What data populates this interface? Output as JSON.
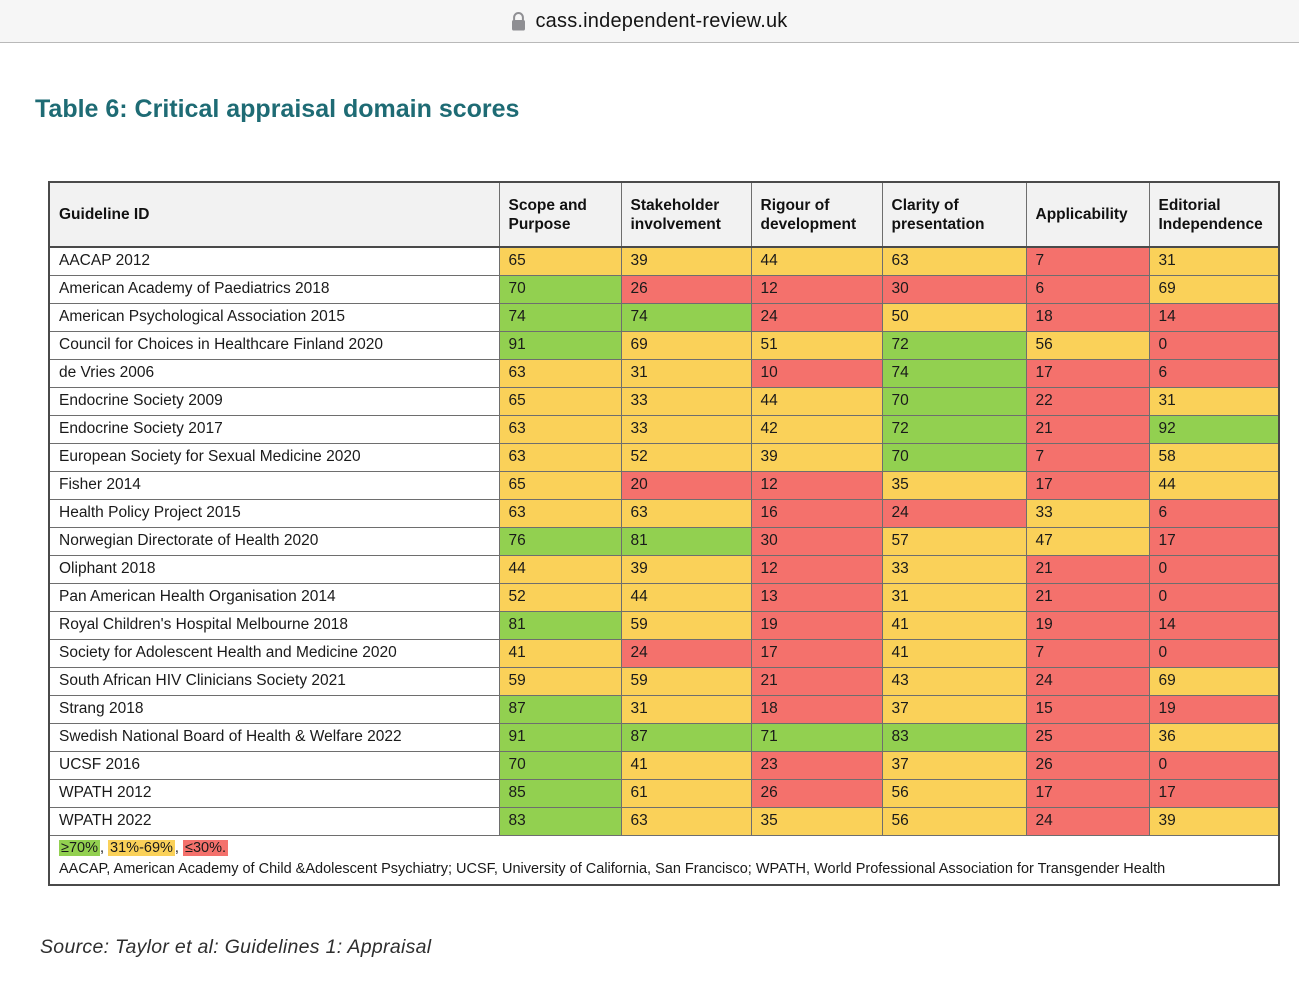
{
  "browser": {
    "domain": "cass.independent-review.uk",
    "lock_icon": "padlock"
  },
  "title": "Table 6: Critical appraisal domain scores",
  "table": {
    "columns": [
      "Guideline ID",
      "Scope and Purpose",
      "Stakeholder involvement",
      "Rigour of development",
      "Clarity of presentation",
      "Applicability",
      "Editorial Independence"
    ],
    "rows": [
      {
        "id": "AACAP 2012",
        "scores": [
          65,
          39,
          44,
          63,
          7,
          31
        ]
      },
      {
        "id": "American Academy of Paediatrics 2018",
        "scores": [
          70,
          26,
          12,
          30,
          6,
          69
        ]
      },
      {
        "id": "American Psychological Association 2015",
        "scores": [
          74,
          74,
          24,
          50,
          18,
          14
        ]
      },
      {
        "id": "Council for Choices in Healthcare Finland 2020",
        "scores": [
          91,
          69,
          51,
          72,
          56,
          0
        ]
      },
      {
        "id": "de Vries 2006",
        "scores": [
          63,
          31,
          10,
          74,
          17,
          6
        ]
      },
      {
        "id": "Endocrine Society 2009",
        "scores": [
          65,
          33,
          44,
          70,
          22,
          31
        ]
      },
      {
        "id": "Endocrine Society 2017",
        "scores": [
          63,
          33,
          42,
          72,
          21,
          92
        ]
      },
      {
        "id": "European Society for Sexual Medicine 2020",
        "scores": [
          63,
          52,
          39,
          70,
          7,
          58
        ]
      },
      {
        "id": "Fisher 2014",
        "scores": [
          65,
          20,
          12,
          35,
          17,
          44
        ]
      },
      {
        "id": "Health Policy Project 2015",
        "scores": [
          63,
          63,
          16,
          24,
          33,
          6
        ]
      },
      {
        "id": "Norwegian Directorate of Health 2020",
        "scores": [
          76,
          81,
          30,
          57,
          47,
          17
        ]
      },
      {
        "id": "Oliphant 2018",
        "scores": [
          44,
          39,
          12,
          33,
          21,
          0
        ]
      },
      {
        "id": "Pan American Health Organisation 2014",
        "scores": [
          52,
          44,
          13,
          31,
          21,
          0
        ]
      },
      {
        "id": "Royal Children's Hospital Melbourne 2018",
        "scores": [
          81,
          59,
          19,
          41,
          19,
          14
        ]
      },
      {
        "id": "Society for Adolescent Health and Medicine 2020",
        "scores": [
          41,
          24,
          17,
          41,
          7,
          0
        ]
      },
      {
        "id": "South African HIV Clinicians Society 2021",
        "scores": [
          59,
          59,
          21,
          43,
          24,
          69
        ]
      },
      {
        "id": "Strang 2018",
        "scores": [
          87,
          31,
          18,
          37,
          15,
          19
        ]
      },
      {
        "id": "Swedish National Board of Health & Welfare 2022",
        "scores": [
          91,
          87,
          71,
          83,
          25,
          36
        ]
      },
      {
        "id": "UCSF 2016",
        "scores": [
          70,
          41,
          23,
          37,
          26,
          0
        ]
      },
      {
        "id": "WPATH 2012",
        "scores": [
          85,
          61,
          26,
          56,
          17,
          17
        ]
      },
      {
        "id": "WPATH 2022",
        "scores": [
          83,
          63,
          35,
          56,
          24,
          39
        ]
      }
    ],
    "thresholds": {
      "high_min": 70,
      "low_max": 30
    },
    "band_colors": {
      "high": "#92d050",
      "mid": "#fad159",
      "low": "#f4716c"
    },
    "legend": {
      "items": [
        {
          "label": "≥70%",
          "band": "high"
        },
        {
          "label": "31%-69%",
          "band": "mid"
        },
        {
          "label": "≤30%.",
          "band": "low"
        }
      ],
      "separator": ", "
    },
    "footnote": "AACAP, American Academy of Child &Adolescent Psychiatry; UCSF, University of California, San Francisco; WPATH, World Professional Association for Transgender Health"
  },
  "source": "Source: Taylor et al: Guidelines 1: Appraisal"
}
